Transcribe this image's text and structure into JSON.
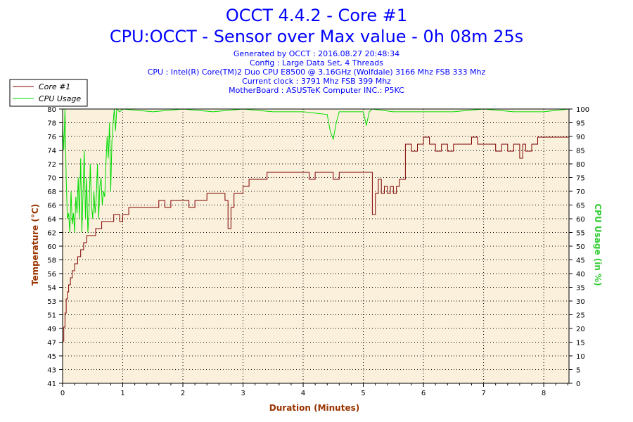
{
  "header": {
    "title_line1": "OCCT 4.4.2 - Core #1",
    "title_line2": "CPU:OCCT - Sensor over Max value - 0h 08m 25s",
    "info": [
      "Generated by OCCT : 2016.08.27 20:48:34",
      "Config : Large Data Set, 4 Threads",
      "CPU : Intel(R) Core(TM)2 Duo CPU E8500 @ 3.16GHz (Wolfdale) 3166 Mhz FSB 333 Mhz",
      "Current clock : 3791 Mhz FSB 399 Mhz",
      "MotherBoard : ASUSTeK Computer INC.: P5KC"
    ]
  },
  "colors": {
    "temperature": "#800000",
    "cpu_usage": "#00dd00",
    "plot_bg": "#faf0dc",
    "title": "#0000ff"
  },
  "chart_data": {
    "type": "line",
    "xlabel": "Duration (Minutes)",
    "ylabel": "Temperature (°C)",
    "y2label": "CPU Usage (in %)",
    "xlim": [
      0,
      8.42
    ],
    "ylim": [
      41,
      80
    ],
    "y2lim": [
      0,
      100
    ],
    "x_ticks": [
      "0",
      "1",
      "2",
      "3",
      "4",
      "5",
      "6",
      "7",
      "8"
    ],
    "y_ticks": [
      "41",
      "43",
      "45",
      "47",
      "49",
      "51",
      "53",
      "54",
      "56",
      "58",
      "60",
      "62",
      "64",
      "66",
      "68",
      "70",
      "72",
      "74",
      "76",
      "78",
      "80"
    ],
    "y2_ticks": [
      "0",
      "5",
      "10",
      "15",
      "20",
      "25",
      "30",
      "35",
      "40",
      "45",
      "50",
      "55",
      "60",
      "65",
      "70",
      "75",
      "80",
      "85",
      "90",
      "95",
      "100"
    ],
    "grid": true,
    "legend_position": "top-left",
    "series": [
      {
        "name": "Core #1",
        "axis": "left",
        "x": [
          0,
          0.02,
          0.04,
          0.06,
          0.08,
          0.1,
          0.13,
          0.16,
          0.2,
          0.25,
          0.3,
          0.35,
          0.4,
          0.45,
          0.5,
          0.55,
          0.6,
          0.65,
          0.7,
          0.75,
          0.8,
          0.85,
          0.9,
          0.95,
          1.0,
          1.05,
          1.1,
          1.2,
          1.3,
          1.4,
          1.5,
          1.6,
          1.7,
          1.8,
          1.9,
          2.0,
          2.1,
          2.2,
          2.3,
          2.4,
          2.5,
          2.6,
          2.65,
          2.7,
          2.75,
          2.8,
          2.85,
          2.9,
          2.95,
          3.0,
          3.1,
          3.2,
          3.3,
          3.4,
          3.5,
          3.6,
          3.7,
          3.8,
          3.9,
          4.0,
          4.1,
          4.2,
          4.3,
          4.4,
          4.5,
          4.6,
          4.7,
          4.8,
          4.9,
          5.0,
          5.1,
          5.15,
          5.2,
          5.25,
          5.3,
          5.35,
          5.4,
          5.45,
          5.5,
          5.55,
          5.6,
          5.7,
          5.8,
          5.9,
          6.0,
          6.1,
          6.2,
          6.3,
          6.4,
          6.5,
          6.6,
          6.7,
          6.8,
          6.9,
          7.0,
          7.1,
          7.2,
          7.3,
          7.4,
          7.5,
          7.55,
          7.6,
          7.65,
          7.7,
          7.8,
          7.9,
          8.0,
          8.1,
          8.2,
          8.3,
          8.42
        ],
        "values": [
          47,
          49,
          51,
          53,
          54,
          55,
          56,
          57,
          58,
          59,
          60,
          61,
          62,
          62,
          62,
          63,
          63,
          64,
          64,
          64,
          64,
          65,
          65,
          64,
          65,
          65,
          66,
          66,
          66,
          66,
          66,
          67,
          66,
          67,
          67,
          67,
          66,
          67,
          67,
          68,
          68,
          68,
          68,
          67,
          63,
          66,
          68,
          68,
          68,
          69,
          70,
          70,
          70,
          71,
          71,
          71,
          71,
          71,
          71,
          71,
          70,
          71,
          71,
          71,
          70,
          71,
          71,
          71,
          71,
          71,
          71,
          65,
          68,
          70,
          68,
          69,
          68,
          69,
          68,
          69,
          70,
          75,
          74,
          75,
          76,
          75,
          74,
          75,
          74,
          75,
          75,
          75,
          76,
          75,
          75,
          75,
          74,
          75,
          74,
          75,
          75,
          73,
          75,
          74,
          75,
          76,
          76,
          76,
          76,
          76,
          76
        ]
      },
      {
        "name": "CPU Usage",
        "axis": "right",
        "x": [
          0,
          0.02,
          0.04,
          0.06,
          0.08,
          0.1,
          0.12,
          0.14,
          0.16,
          0.18,
          0.2,
          0.22,
          0.24,
          0.26,
          0.28,
          0.3,
          0.32,
          0.34,
          0.36,
          0.38,
          0.4,
          0.42,
          0.44,
          0.46,
          0.48,
          0.5,
          0.52,
          0.54,
          0.56,
          0.58,
          0.6,
          0.62,
          0.64,
          0.66,
          0.68,
          0.7,
          0.72,
          0.74,
          0.76,
          0.78,
          0.8,
          0.82,
          0.84,
          0.86,
          0.88,
          0.9,
          0.95,
          1.0,
          1.5,
          2.0,
          2.5,
          3.0,
          3.5,
          4.0,
          4.4,
          4.45,
          4.5,
          4.55,
          4.6,
          5.0,
          5.05,
          5.1,
          5.15,
          5.5,
          6.0,
          6.5,
          7.0,
          7.5,
          8.0,
          8.42
        ],
        "values": [
          95,
          85,
          100,
          75,
          60,
          62,
          55,
          70,
          58,
          62,
          55,
          68,
          62,
          75,
          60,
          82,
          55,
          70,
          85,
          60,
          75,
          55,
          62,
          80,
          65,
          60,
          70,
          62,
          68,
          80,
          60,
          72,
          75,
          65,
          70,
          68,
          80,
          90,
          82,
          95,
          70,
          88,
          95,
          100,
          92,
          100,
          99,
          100,
          99,
          100,
          99,
          100,
          99,
          99,
          98,
          92,
          89,
          95,
          99,
          99,
          94,
          99,
          100,
          99,
          99,
          99,
          100,
          99,
          99,
          100
        ]
      }
    ]
  }
}
